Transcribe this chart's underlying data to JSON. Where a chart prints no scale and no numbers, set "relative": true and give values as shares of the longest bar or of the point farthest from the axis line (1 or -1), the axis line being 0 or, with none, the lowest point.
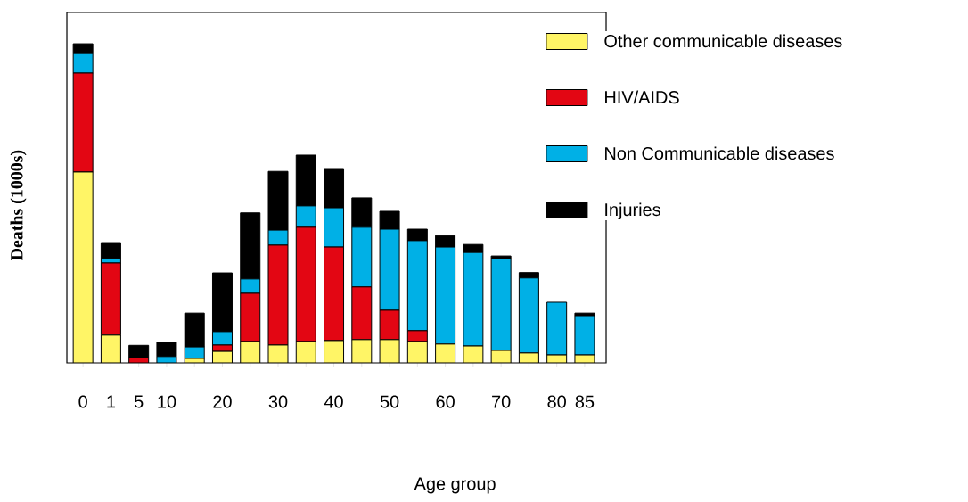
{
  "chart_data": {
    "type": "bar",
    "stacked": true,
    "relative": true,
    "legend": "top right",
    "xlabel": "Age group",
    "ylabel": "Deaths (1000s)",
    "categories": [
      "0",
      "1",
      "5",
      "10",
      null,
      "20",
      null,
      "30",
      null,
      "40",
      null,
      "50",
      null,
      "60",
      null,
      "70",
      null,
      "80",
      "85"
    ],
    "series": [
      {
        "name": "Other communicable diseases",
        "color": "#fff566",
        "values": [
          0.598,
          0.087,
          null,
          null,
          0.014,
          0.036,
          0.067,
          0.056,
          0.067,
          0.07,
          0.073,
          0.073,
          0.067,
          0.059,
          0.053,
          0.039,
          0.031,
          0.025,
          0.025
        ]
      },
      {
        "name": "HIV/AIDS",
        "color": "#e30613",
        "values": [
          0.31,
          0.226,
          0.016,
          0,
          0,
          0.02,
          0.151,
          0.313,
          0.358,
          0.293,
          0.165,
          0.092,
          0.034,
          0,
          0,
          0,
          0,
          0,
          0
        ]
      },
      {
        "name": "Non Communicable diseases",
        "color": "#00b0e6",
        "values": [
          0.061,
          0.014,
          0,
          0.02,
          0.036,
          0.042,
          0.045,
          0.047,
          0.067,
          0.123,
          0.187,
          0.254,
          0.282,
          0.304,
          0.293,
          0.288,
          0.235,
          0.165,
          0.123
        ]
      },
      {
        "name": "Injuries",
        "color": "#000000",
        "values": [
          0.031,
          0.05,
          0.039,
          0.045,
          0.106,
          0.184,
          0.207,
          0.184,
          0.159,
          0.123,
          0.092,
          0.056,
          0.036,
          0.036,
          0.025,
          0.008,
          0.017,
          0,
          0.008
        ]
      }
    ]
  }
}
